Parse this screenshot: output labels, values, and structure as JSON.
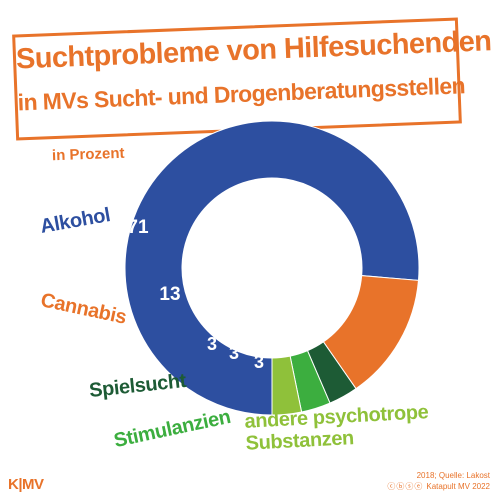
{
  "title": {
    "line1": "Suchtprobleme von Hilfesuchenden",
    "line2": "in MVs Sucht- und Drogenberatungsstellen"
  },
  "subtitle": "in Prozent",
  "chart_data": {
    "type": "pie",
    "categories": [
      "Alkohol",
      "Cannabis",
      "Spielsucht",
      "Stimulanzien",
      "andere psychotrope Substanzen"
    ],
    "values": [
      71,
      13,
      3,
      3,
      3
    ],
    "value_labels": [
      "71",
      "13",
      "3",
      "3",
      "3"
    ],
    "colors": [
      "#2d4fa0",
      "#e8732a",
      "#1d5b35",
      "#3cae3f",
      "#8fc13a"
    ],
    "donut": true
  },
  "labels": {
    "alkohol": "Alkohol",
    "cannabis": "Cannabis",
    "spielsucht": "Spielsucht",
    "stimulanzien": "Stimulanzien",
    "andere_line1": "andere psychotrope",
    "andere_line2": "Substanzen"
  },
  "footer": {
    "logo": "K|MV",
    "source_line1": "2018; Quelle: Lakost",
    "source_line2": "Katapult MV 2022",
    "license_icons": "ⓒⓑⓢⓔ"
  }
}
